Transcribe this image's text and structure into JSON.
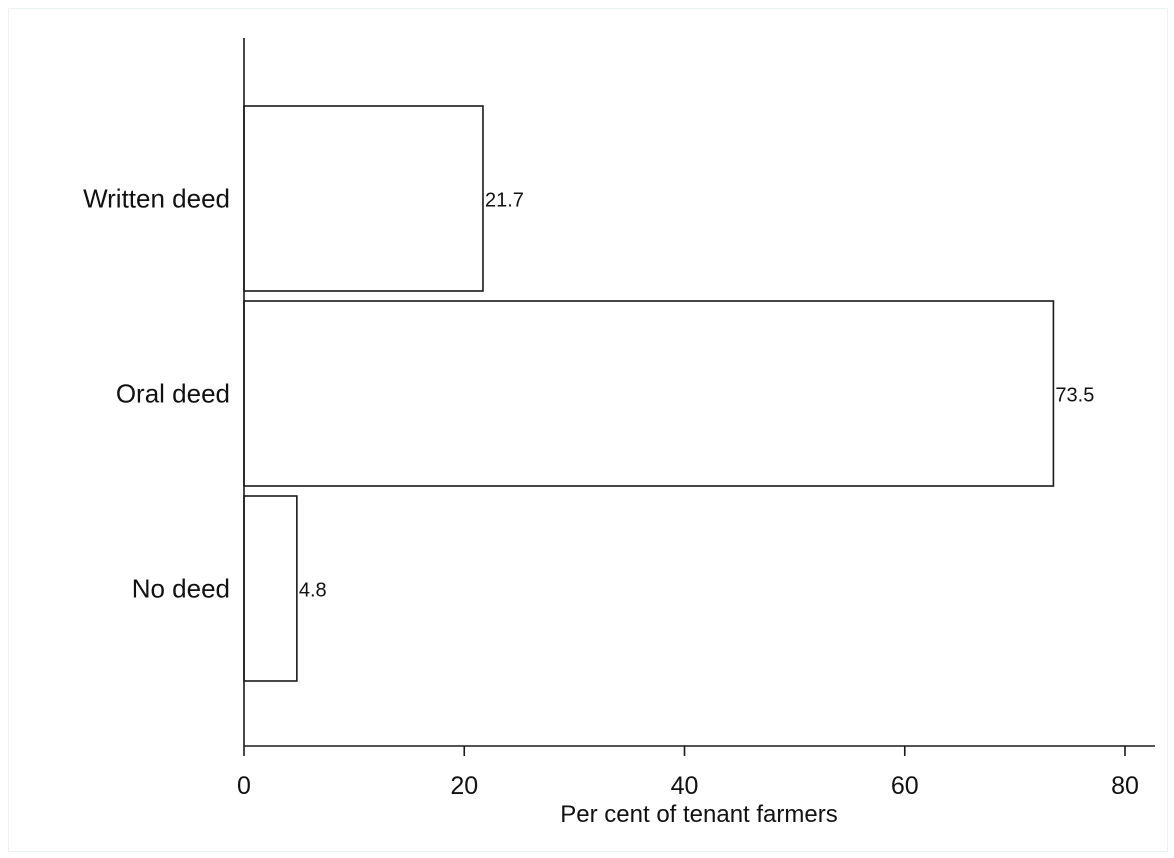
{
  "chart_data": {
    "type": "bar",
    "orientation": "horizontal",
    "categories": [
      "Written deed",
      "Oral deed",
      "No deed"
    ],
    "values": [
      21.7,
      73.5,
      4.8
    ],
    "value_labels": [
      "21.7",
      "73.5",
      "4.8"
    ],
    "title": "",
    "xlabel": "Per cent of tenant farmers",
    "ylabel": "",
    "xlim": [
      0,
      80
    ],
    "xticks": [
      0,
      20,
      40,
      60,
      80
    ],
    "xtick_labels": [
      "0",
      "20",
      "40",
      "60",
      "80"
    ],
    "grid": false,
    "legend": "none",
    "colors": {
      "bar_fill": "#ffffff",
      "bar_stroke": "#1a1a1a",
      "axis": "#1a1a1a",
      "frame_border": "#eaf2f3"
    }
  }
}
